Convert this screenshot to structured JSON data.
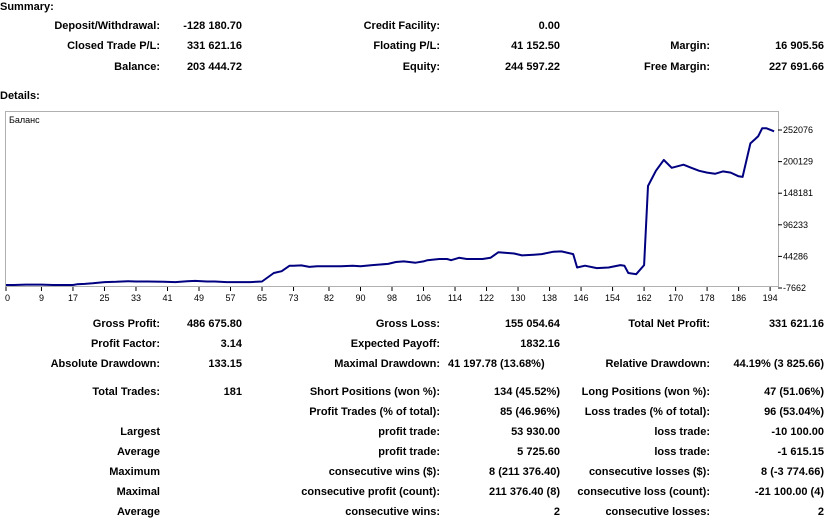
{
  "summary": {
    "title": "Summary:",
    "deposit_withdrawal_label": "Deposit/Withdrawal:",
    "deposit_withdrawal_value": "-128 180.70",
    "credit_facility_label": "Credit Facility:",
    "credit_facility_value": "0.00",
    "closed_trade_pl_label": "Closed Trade P/L:",
    "closed_trade_pl_value": "331 621.16",
    "floating_pl_label": "Floating P/L:",
    "floating_pl_value": "41 152.50",
    "margin_label": "Margin:",
    "margin_value": "16 905.56",
    "balance_label": "Balance:",
    "balance_value": "203 444.72",
    "equity_label": "Equity:",
    "equity_value": "244 597.22",
    "free_margin_label": "Free Margin:",
    "free_margin_value": "227 691.66"
  },
  "details": {
    "title": "Details:"
  },
  "chart_data": {
    "type": "line",
    "series": [
      {
        "name": "Баланс",
        "x": [
          0,
          2,
          5,
          9,
          12,
          15,
          17,
          18,
          20,
          22,
          25,
          28,
          31,
          33,
          36,
          40,
          43,
          46,
          48,
          51,
          53,
          56,
          59,
          62,
          65,
          68,
          70,
          72,
          73,
          75,
          77,
          79,
          82,
          85,
          88,
          90,
          93,
          95,
          97,
          99,
          101,
          104,
          106,
          107,
          110,
          112,
          113,
          115,
          117,
          118,
          121,
          123,
          125,
          127,
          129,
          131,
          134,
          136,
          139,
          141,
          144,
          145,
          147,
          150,
          153,
          156,
          157,
          158,
          159,
          160,
          162,
          163,
          165,
          167,
          169,
          172,
          174,
          176,
          178,
          180,
          182,
          184,
          186,
          187,
          189,
          190,
          191,
          192,
          193,
          195
        ],
        "y": [
          -3000,
          -3000,
          -2000,
          -2000,
          -3000,
          -3000,
          -3500,
          -1500,
          -1000,
          0,
          2000,
          2500,
          3500,
          3000,
          3000,
          2500,
          2000,
          3500,
          4000,
          3000,
          3000,
          2000,
          2000,
          2000,
          3000,
          17000,
          20000,
          29000,
          29000,
          29500,
          27000,
          28000,
          28000,
          28000,
          29000,
          28000,
          30000,
          31000,
          32000,
          35000,
          36000,
          34000,
          36000,
          38000,
          40000,
          40000,
          38000,
          42000,
          40000,
          40000,
          40000,
          42000,
          51000,
          50000,
          49000,
          46000,
          47000,
          48000,
          52000,
          52500,
          48000,
          26000,
          29000,
          25000,
          26000,
          30000,
          29000,
          17000,
          16000,
          15000,
          30000,
          160000,
          185000,
          203000,
          190000,
          195000,
          190000,
          185000,
          182000,
          180000,
          184000,
          182000,
          176000,
          175000,
          230000,
          236000,
          242000,
          255000,
          255000,
          250000
        ]
      }
    ],
    "x_ticks": [
      0,
      9,
      17,
      25,
      33,
      41,
      49,
      57,
      65,
      73,
      82,
      90,
      98,
      106,
      114,
      122,
      130,
      138,
      146,
      154,
      162,
      170,
      178,
      186,
      194
    ],
    "y_ticks": [
      "252076",
      "200129",
      "148181",
      "96233",
      "44286",
      "-7662"
    ],
    "ylim": [
      -7662,
      252076
    ],
    "xlim": [
      0,
      196
    ]
  },
  "stats": {
    "gross_profit_label": "Gross Profit:",
    "gross_profit_value": "486 675.80",
    "gross_loss_label": "Gross Loss:",
    "gross_loss_value": "155 054.64",
    "total_net_profit_label": "Total Net Profit:",
    "total_net_profit_value": "331 621.16",
    "profit_factor_label": "Profit Factor:",
    "profit_factor_value": "3.14",
    "expected_payoff_label": "Expected Payoff:",
    "expected_payoff_value": "1832.16",
    "absolute_drawdown_label": "Absolute Drawdown:",
    "absolute_drawdown_value": "133.15",
    "maximal_drawdown_label": "Maximal Drawdown:",
    "maximal_drawdown_value": "41 197.78 (13.68%)",
    "relative_drawdown_label": "Relative Drawdown:",
    "relative_drawdown_value": "44.19% (3 825.66)",
    "total_trades_label": "Total Trades:",
    "total_trades_value": "181",
    "short_positions_label": "Short Positions (won %):",
    "short_positions_value": "134 (45.52%)",
    "long_positions_label": "Long Positions (won %):",
    "long_positions_value": "47 (51.06%)",
    "profit_trades_label": "Profit Trades (% of total):",
    "profit_trades_value": "85 (46.96%)",
    "loss_trades_label": "Loss trades (% of total):",
    "loss_trades_value": "96 (53.04%)",
    "largest_label": "Largest",
    "largest_profit_label": "profit trade:",
    "largest_profit_value": "53 930.00",
    "largest_loss_label": "loss trade:",
    "largest_loss_value": "-10 100.00",
    "average_label": "Average",
    "average_profit_label": "profit trade:",
    "average_profit_value": "5 725.60",
    "average_loss_label": "loss trade:",
    "average_loss_value": "-1 615.15",
    "maximum_label": "Maximum",
    "max_cons_wins_label": "consecutive wins ($):",
    "max_cons_wins_value": "8 (211 376.40)",
    "max_cons_losses_label": "consecutive losses ($):",
    "max_cons_losses_value": "8 (-3 774.66)",
    "maximal_label": "Maximal",
    "maximal_cons_profit_label": "consecutive profit (count):",
    "maximal_cons_profit_value": "211 376.40 (8)",
    "maximal_cons_loss_label": "consecutive loss (count):",
    "maximal_cons_loss_value": "-21 100.00 (4)",
    "average2_label": "Average",
    "avg_cons_wins_label": "consecutive wins:",
    "avg_cons_wins_value": "2",
    "avg_cons_losses_label": "consecutive losses:",
    "avg_cons_losses_value": "2"
  },
  "colors": {
    "line": "#000080",
    "frame": "#b0b0b0"
  }
}
